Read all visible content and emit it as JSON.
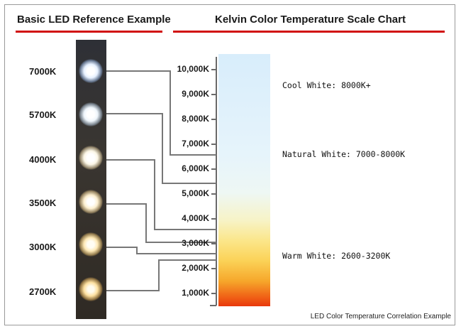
{
  "left_header": "Basic LED Reference Example",
  "right_header": "Kelvin Color Temperature Scale Chart",
  "led_labels": [
    "7000K",
    "5700K",
    "4000K",
    "3500K",
    "3000K",
    "2700K"
  ],
  "scale_ticks": [
    "10,000K",
    "9,000K",
    "8,000K",
    "7,000K",
    "6,000K",
    "5,000K",
    "4,000K",
    "3,000K",
    "2,000K",
    "1,000K"
  ],
  "annotations": {
    "cool": "Cool White: 8000K+",
    "natural": "Natural White: 7000-8000K",
    "warm": "Warm White: 2600-3200K"
  },
  "caption": "LED Color Temperature Correlation Example",
  "colors": {
    "header_rule": "#d10f0f",
    "connector": "#7a7a7a"
  }
}
